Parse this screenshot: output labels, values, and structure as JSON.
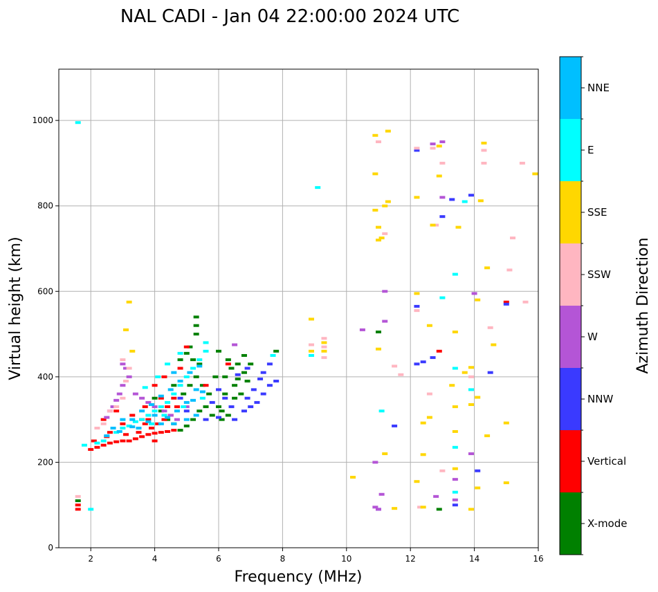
{
  "chart_data": {
    "type": "scatter",
    "title": "NAL CADI - Jan 04 22:00:00 2024 UTC",
    "xlabel": "Frequency (MHz)",
    "ylabel": "Virtual height (km)",
    "xlim": [
      1,
      16
    ],
    "ylim": [
      0,
      1120
    ],
    "x_ticks": [
      2,
      4,
      6,
      8,
      10,
      12,
      14,
      16
    ],
    "y_ticks": [
      0,
      200,
      400,
      600,
      800,
      1000
    ],
    "grid": true,
    "colorbar": {
      "label": "Azimuth Direction",
      "categories": [
        "X-mode",
        "Vertical",
        "NNW",
        "W",
        "SSW",
        "SSE",
        "E",
        "NNE"
      ],
      "colors": [
        "#008000",
        "#ff0000",
        "#3a3aff",
        "#b455d6",
        "#ffb6c1",
        "#ffd700",
        "#00ffff",
        "#00bfff"
      ]
    },
    "series": [
      {
        "name": "X-mode",
        "points": [
          [
            5.3,
            540
          ],
          [
            5.3,
            520
          ],
          [
            5.3,
            500
          ],
          [
            5.1,
            470
          ],
          [
            5.0,
            455
          ],
          [
            4.8,
            440
          ],
          [
            6.0,
            460
          ],
          [
            6.3,
            440
          ],
          [
            6.6,
            430
          ],
          [
            6.8,
            410
          ],
          [
            6.5,
            380
          ],
          [
            6.2,
            360
          ],
          [
            6.0,
            330
          ],
          [
            5.6,
            330
          ],
          [
            5.4,
            320
          ],
          [
            5.2,
            300
          ],
          [
            5.0,
            285
          ],
          [
            4.8,
            275
          ],
          [
            4.6,
            290
          ],
          [
            6.3,
            310
          ],
          [
            6.1,
            300
          ],
          [
            6.5,
            350
          ],
          [
            6.7,
            360
          ],
          [
            6.9,
            390
          ],
          [
            7.0,
            430
          ],
          [
            4.4,
            300
          ],
          [
            4.2,
            320
          ],
          [
            4.9,
            360
          ],
          [
            5.1,
            380
          ],
          [
            5.3,
            400
          ],
          [
            5.5,
            380
          ],
          [
            5.7,
            360
          ],
          [
            6.4,
            420
          ],
          [
            6.8,
            450
          ],
          [
            1.6,
            110
          ],
          [
            12.9,
            90
          ],
          [
            11.0,
            505
          ],
          [
            7.8,
            460
          ],
          [
            4.0,
            350
          ],
          [
            4.6,
            380
          ],
          [
            5.4,
            430
          ],
          [
            5.9,
            400
          ],
          [
            6.2,
            400
          ],
          [
            6.6,
            395
          ],
          [
            5.8,
            310
          ],
          [
            6.1,
            320
          ],
          [
            5.2,
            440
          ]
        ]
      },
      {
        "name": "Vertical",
        "points": [
          [
            2.0,
            230
          ],
          [
            2.2,
            235
          ],
          [
            2.4,
            240
          ],
          [
            2.6,
            245
          ],
          [
            2.8,
            248
          ],
          [
            3.0,
            250
          ],
          [
            3.2,
            250
          ],
          [
            3.4,
            255
          ],
          [
            3.6,
            260
          ],
          [
            3.8,
            265
          ],
          [
            4.0,
            268
          ],
          [
            4.2,
            270
          ],
          [
            4.4,
            272
          ],
          [
            4.6,
            275
          ],
          [
            4.0,
            250
          ],
          [
            4.1,
            290
          ],
          [
            4.3,
            300
          ],
          [
            4.5,
            310
          ],
          [
            3.5,
            270
          ],
          [
            3.9,
            280
          ],
          [
            3.6,
            300
          ],
          [
            3.3,
            310
          ],
          [
            3.0,
            290
          ],
          [
            2.6,
            270
          ],
          [
            2.4,
            300
          ],
          [
            2.8,
            320
          ],
          [
            4.0,
            380
          ],
          [
            4.3,
            400
          ],
          [
            4.8,
            420
          ],
          [
            5.0,
            470
          ],
          [
            4.7,
            330
          ],
          [
            5.6,
            380
          ],
          [
            6.3,
            430
          ],
          [
            1.6,
            90
          ],
          [
            1.6,
            100
          ],
          [
            12.9,
            460
          ],
          [
            15.0,
            575
          ],
          [
            3.8,
            300
          ],
          [
            4.2,
            350
          ],
          [
            4.4,
            330
          ],
          [
            3.7,
            330
          ],
          [
            4.6,
            350
          ],
          [
            2.1,
            250
          ],
          [
            2.5,
            260
          ],
          [
            3.1,
            265
          ],
          [
            3.7,
            290
          ]
        ]
      },
      {
        "name": "NNW",
        "points": [
          [
            6.5,
            300
          ],
          [
            6.8,
            320
          ],
          [
            7.0,
            330
          ],
          [
            7.2,
            340
          ],
          [
            7.4,
            360
          ],
          [
            7.6,
            380
          ],
          [
            7.8,
            390
          ],
          [
            7.1,
            370
          ],
          [
            6.9,
            350
          ],
          [
            6.4,
            330
          ],
          [
            6.2,
            350
          ],
          [
            6.9,
            420
          ],
          [
            7.4,
            410
          ],
          [
            7.6,
            430
          ],
          [
            5.8,
            340
          ],
          [
            6.0,
            370
          ],
          [
            4.8,
            350
          ],
          [
            5.0,
            320
          ],
          [
            12.2,
            430
          ],
          [
            12.4,
            435
          ],
          [
            13.0,
            775
          ],
          [
            13.3,
            815
          ],
          [
            12.2,
            565
          ],
          [
            12.2,
            930
          ],
          [
            11.5,
            285
          ],
          [
            12.7,
            445
          ],
          [
            13.4,
            100
          ],
          [
            13.9,
            825
          ],
          [
            15.0,
            570
          ],
          [
            14.1,
            180
          ],
          [
            14.5,
            410
          ],
          [
            11.0,
            90
          ],
          [
            7.3,
            395
          ],
          [
            6.6,
            405
          ],
          [
            5.6,
            300
          ],
          [
            6.0,
            305
          ]
        ]
      },
      {
        "name": "W",
        "points": [
          [
            3.0,
            430
          ],
          [
            3.1,
            420
          ],
          [
            3.2,
            400
          ],
          [
            3.0,
            380
          ],
          [
            2.9,
            360
          ],
          [
            2.8,
            345
          ],
          [
            2.7,
            330
          ],
          [
            2.6,
            320
          ],
          [
            2.5,
            305
          ],
          [
            3.4,
            360
          ],
          [
            3.6,
            350
          ],
          [
            3.8,
            340
          ],
          [
            4.0,
            330
          ],
          [
            4.3,
            320
          ],
          [
            4.5,
            310
          ],
          [
            4.7,
            300
          ],
          [
            5.0,
            330
          ],
          [
            6.5,
            475
          ],
          [
            13.0,
            950
          ],
          [
            13.4,
            160
          ],
          [
            12.8,
            120
          ],
          [
            13.4,
            112
          ],
          [
            14.0,
            595
          ],
          [
            12.7,
            945
          ],
          [
            11.2,
            530
          ],
          [
            10.5,
            510
          ],
          [
            11.2,
            600
          ],
          [
            10.9,
            200
          ],
          [
            11.1,
            125
          ],
          [
            11.0,
            90
          ],
          [
            13.9,
            220
          ],
          [
            13.0,
            820
          ],
          [
            10.9,
            95
          ]
        ]
      },
      {
        "name": "SSW",
        "points": [
          [
            2.2,
            280
          ],
          [
            2.4,
            290
          ],
          [
            2.6,
            320
          ],
          [
            2.8,
            330
          ],
          [
            3.0,
            350
          ],
          [
            3.1,
            390
          ],
          [
            3.2,
            420
          ],
          [
            3.0,
            440
          ],
          [
            8.9,
            475
          ],
          [
            9.3,
            490
          ],
          [
            9.3,
            470
          ],
          [
            12.8,
            755
          ],
          [
            13.0,
            900
          ],
          [
            13.0,
            180
          ],
          [
            12.6,
            360
          ],
          [
            14.3,
            900
          ],
          [
            14.5,
            515
          ],
          [
            15.1,
            650
          ],
          [
            15.2,
            725
          ],
          [
            15.5,
            900
          ],
          [
            15.6,
            575
          ],
          [
            14.3,
            930
          ],
          [
            12.3,
            95
          ],
          [
            11.0,
            950
          ],
          [
            11.5,
            425
          ],
          [
            11.7,
            405
          ],
          [
            9.3,
            445
          ],
          [
            12.2,
            555
          ],
          [
            12.2,
            935
          ],
          [
            13.9,
            400
          ],
          [
            11.2,
            735
          ],
          [
            12.7,
            935
          ],
          [
            1.6,
            120
          ]
        ]
      },
      {
        "name": "SSE",
        "points": [
          [
            3.2,
            575
          ],
          [
            3.3,
            460
          ],
          [
            3.1,
            510
          ],
          [
            8.9,
            535
          ],
          [
            8.9,
            460
          ],
          [
            9.3,
            460
          ],
          [
            9.3,
            480
          ],
          [
            10.2,
            165
          ],
          [
            10.9,
            965
          ],
          [
            10.9,
            875
          ],
          [
            10.9,
            790
          ],
          [
            11.0,
            750
          ],
          [
            11.1,
            725
          ],
          [
            11.2,
            800
          ],
          [
            11.3,
            810
          ],
          [
            11.3,
            975
          ],
          [
            11.2,
            220
          ],
          [
            11.5,
            92
          ],
          [
            12.2,
            820
          ],
          [
            12.2,
            595
          ],
          [
            12.4,
            95
          ],
          [
            12.4,
            218
          ],
          [
            12.4,
            292
          ],
          [
            12.6,
            520
          ],
          [
            12.6,
            305
          ],
          [
            12.7,
            755
          ],
          [
            12.9,
            870
          ],
          [
            12.9,
            940
          ],
          [
            13.3,
            380
          ],
          [
            13.4,
            505
          ],
          [
            13.4,
            330
          ],
          [
            13.4,
            272
          ],
          [
            13.4,
            185
          ],
          [
            13.5,
            750
          ],
          [
            13.7,
            410
          ],
          [
            13.9,
            422
          ],
          [
            13.9,
            335
          ],
          [
            13.9,
            90
          ],
          [
            14.1,
            580
          ],
          [
            14.1,
            352
          ],
          [
            14.2,
            812
          ],
          [
            14.3,
            947
          ],
          [
            14.4,
            655
          ],
          [
            14.4,
            262
          ],
          [
            14.6,
            475
          ],
          [
            15.0,
            292
          ],
          [
            15.0,
            152
          ],
          [
            15.9,
            875
          ],
          [
            14.1,
            140
          ],
          [
            12.2,
            155
          ],
          [
            11.0,
            465
          ],
          [
            11.0,
            720
          ]
        ]
      },
      {
        "name": "E",
        "points": [
          [
            2.8,
            270
          ],
          [
            3.0,
            280
          ],
          [
            3.2,
            285
          ],
          [
            3.4,
            295
          ],
          [
            3.6,
            300
          ],
          [
            3.8,
            310
          ],
          [
            4.0,
            320
          ],
          [
            4.2,
            330
          ],
          [
            4.4,
            340
          ],
          [
            4.6,
            360
          ],
          [
            4.8,
            380
          ],
          [
            5.0,
            400
          ],
          [
            5.2,
            420
          ],
          [
            5.4,
            440
          ],
          [
            5.6,
            460
          ],
          [
            3.7,
            375
          ],
          [
            4.1,
            400
          ],
          [
            4.4,
            430
          ],
          [
            4.8,
            455
          ],
          [
            5.6,
            480
          ],
          [
            2.4,
            250
          ],
          [
            2.2,
            245
          ],
          [
            1.8,
            240
          ],
          [
            13.4,
            640
          ],
          [
            13.4,
            420
          ],
          [
            13.4,
            235
          ],
          [
            13.4,
            130
          ],
          [
            13.0,
            585
          ],
          [
            13.7,
            810
          ],
          [
            13.9,
            370
          ],
          [
            9.1,
            843
          ],
          [
            11.1,
            320
          ],
          [
            8.9,
            450
          ],
          [
            7.7,
            450
          ],
          [
            1.6,
            995
          ],
          [
            2.0,
            90
          ],
          [
            3.9,
            290
          ],
          [
            4.3,
            310
          ],
          [
            4.9,
            330
          ],
          [
            5.5,
            350
          ]
        ]
      },
      {
        "name": "NNE",
        "points": [
          [
            3.6,
            320
          ],
          [
            3.9,
            335
          ],
          [
            4.2,
            355
          ],
          [
            4.5,
            370
          ],
          [
            4.8,
            390
          ],
          [
            5.1,
            410
          ],
          [
            5.4,
            425
          ],
          [
            3.3,
            300
          ],
          [
            3.0,
            300
          ],
          [
            2.7,
            280
          ],
          [
            4.6,
            290
          ],
          [
            5.0,
            300
          ],
          [
            5.3,
            310
          ],
          [
            3.5,
            280
          ],
          [
            4.2,
            290
          ],
          [
            4.7,
            320
          ],
          [
            5.2,
            345
          ],
          [
            5.5,
            365
          ],
          [
            2.5,
            262
          ],
          [
            2.9,
            272
          ],
          [
            3.3,
            283
          ],
          [
            3.8,
            295
          ],
          [
            4.4,
            305
          ],
          [
            5.0,
            340
          ],
          [
            5.3,
            370
          ],
          [
            4.6,
            410
          ],
          [
            4.0,
            310
          ]
        ]
      }
    ]
  }
}
